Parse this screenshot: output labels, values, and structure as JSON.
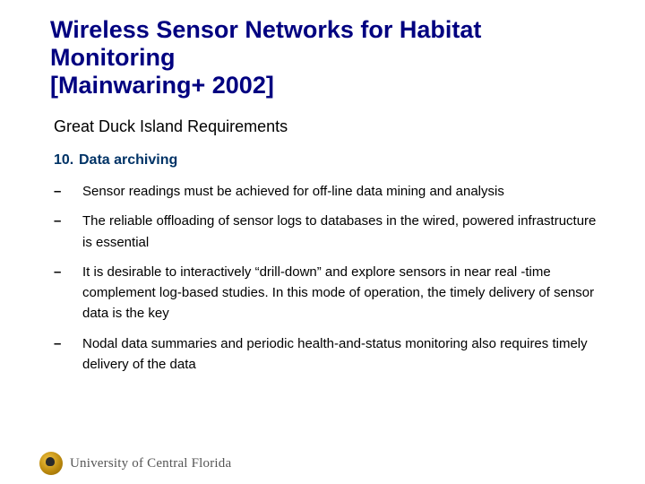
{
  "title": "Wireless Sensor Networks for Habitat Monitoring\n[Mainwaring+ 2002]",
  "subtitle": "Great Duck Island Requirements",
  "item": {
    "number": "10.",
    "label": "Data archiving"
  },
  "bullets": [
    "Sensor readings must be achieved for off-line data mining and analysis",
    "The reliable offloading of sensor logs to databases in the wired, powered infrastructure is essential",
    "It is desirable to interactively “drill-down” and explore sensors in near real -time complement log-based studies. In this mode of operation, the timely delivery of sensor data is the key",
    "Nodal data summaries and periodic health-and-status monitoring also requires timely delivery of the data"
  ],
  "footer": {
    "institution": "University of Central Florida"
  },
  "colors": {
    "title_color": "#000080",
    "heading_color": "#003366",
    "text_color": "#000000",
    "footer_color": "#555555",
    "background": "#ffffff"
  },
  "typography": {
    "title_font": "Comic Sans MS",
    "title_size_pt": 27,
    "body_font": "Arial",
    "subtitle_size_pt": 18,
    "body_size_pt": 15,
    "footer_font": "Georgia"
  }
}
